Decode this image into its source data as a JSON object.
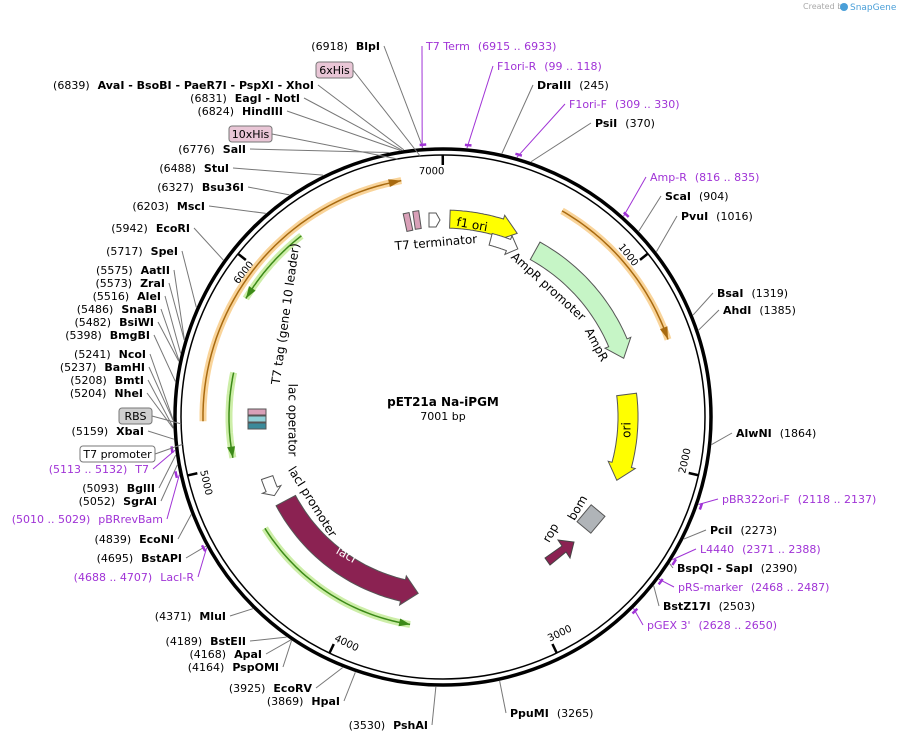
{
  "header": {
    "credit": "Created by",
    "brand": "SnapGene"
  },
  "map": {
    "name": "pET21a Na-iPGM",
    "length": "7001 bp",
    "ticks": [
      1000,
      2000,
      3000,
      4000,
      5000,
      6000,
      7000
    ]
  },
  "enzymes": [
    {
      "position": "(6918)",
      "name": "BlpI"
    },
    {
      "position": "(6839)",
      "name": "AvaI - BsoBI - PaeR7I - PspXI - XhoI"
    },
    {
      "position": "(6831)",
      "name": "EagI - NotI"
    },
    {
      "position": "(6824)",
      "name": "HindIII"
    },
    {
      "position": "(6776)",
      "name": "SalI"
    },
    {
      "position": "(6488)",
      "name": "StuI"
    },
    {
      "position": "(6327)",
      "name": "Bsu36I"
    },
    {
      "position": "(6203)",
      "name": "MscI"
    },
    {
      "position": "(5942)",
      "name": "EcoRI"
    },
    {
      "position": "(5717)",
      "name": "SpeI"
    },
    {
      "position": "(5575)",
      "name": "AatII"
    },
    {
      "position": "(5573)",
      "name": "ZraI"
    },
    {
      "position": "(5516)",
      "name": "AleI"
    },
    {
      "position": "(5486)",
      "name": "SnaBI"
    },
    {
      "position": "(5482)",
      "name": "BsiWI"
    },
    {
      "position": "(5398)",
      "name": "BmgBI"
    },
    {
      "position": "(5241)",
      "name": "NcoI"
    },
    {
      "position": "(5237)",
      "name": "BamHI"
    },
    {
      "position": "(5208)",
      "name": "BmtI"
    },
    {
      "position": "(5204)",
      "name": "NheI"
    },
    {
      "position": "(5159)",
      "name": "XbaI"
    },
    {
      "position": "(5093)",
      "name": "BglII"
    },
    {
      "position": "(5052)",
      "name": "SgrAI"
    },
    {
      "position": "(4839)",
      "name": "EcoNI"
    },
    {
      "position": "(4695)",
      "name": "BstAPI"
    },
    {
      "position": "(4371)",
      "name": "MluI"
    },
    {
      "position": "(4189)",
      "name": "BstEII"
    },
    {
      "position": "(4168)",
      "name": "ApaI"
    },
    {
      "position": "(4164)",
      "name": "PspOMI"
    },
    {
      "position": "(3925)",
      "name": "EcoRV"
    },
    {
      "position": "(3869)",
      "name": "HpaI"
    },
    {
      "position": "(3530)",
      "name": "PshAI"
    },
    {
      "position": "(245)",
      "name": "DraIII"
    },
    {
      "position": "(370)",
      "name": "PsiI"
    },
    {
      "position": "(904)",
      "name": "ScaI"
    },
    {
      "position": "(1016)",
      "name": "PvuI"
    },
    {
      "position": "(1319)",
      "name": "BsaI"
    },
    {
      "position": "(1385)",
      "name": "AhdI"
    },
    {
      "position": "(1864)",
      "name": "AlwNI"
    },
    {
      "position": "(2273)",
      "name": "PciI"
    },
    {
      "position": "(2390)",
      "name": "BspQI - SapI"
    },
    {
      "position": "(2503)",
      "name": "BstZ17I"
    },
    {
      "position": "(3265)",
      "name": "PpuMI"
    }
  ],
  "primers": [
    {
      "name": "T7 Term",
      "range": "(6915 .. 6933)"
    },
    {
      "name": "F1ori-R",
      "range": "(99 .. 118)"
    },
    {
      "name": "F1ori-F",
      "range": "(309 .. 330)"
    },
    {
      "name": "Amp-R",
      "range": "(816 .. 835)"
    },
    {
      "name": "pBR322ori-F",
      "range": "(2118 .. 2137)"
    },
    {
      "name": "L4440",
      "range": "(2371 .. 2388)"
    },
    {
      "name": "pRS-marker",
      "range": "(2468 .. 2487)"
    },
    {
      "name": "pGEX 3'",
      "range": "(2628 .. 2650)"
    },
    {
      "name": "T7",
      "range": "(5113 .. 5132)"
    },
    {
      "name": "pBRrevBam",
      "range": "(5010 .. 5029)"
    },
    {
      "name": "LacI-R",
      "range": "(4688 .. 4707)"
    }
  ],
  "tags": [
    "6xHis",
    "10xHis",
    "RBS",
    "T7 promoter"
  ],
  "features": [
    "T7 terminator",
    "f1 ori",
    "AmpR promoter",
    "AmpR",
    "ori",
    "bom",
    "rop",
    "lacI",
    "lacI promoter",
    "lac operator",
    "T7 tag (gene 10 leader)"
  ]
}
